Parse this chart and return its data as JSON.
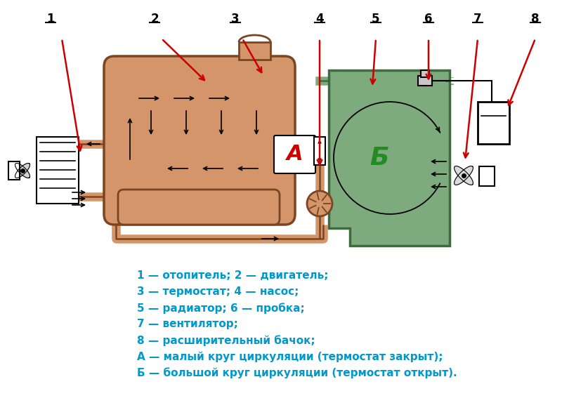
{
  "bg_color": "#ffffff",
  "engine_color": "#d4956a",
  "engine_stroke": "#7a4520",
  "radiator_color": "#7dab7d",
  "radiator_stroke": "#3d6b3d",
  "pipe_color": "#d4956a",
  "pipe_stroke": "#7a4520",
  "red_arrow_color": "#cc0000",
  "text_color": "#0099cc",
  "label_A_color": "#cc0000",
  "label_B_color": "#228B22",
  "legend_lines": [
    "1 — отопитель; 2 — двигатель;",
    "3 — термостат; 4 — насос;",
    "5 — радиатор; 6 — пробка;",
    "7 — вентилятор;",
    "8 — расширительный бачок;",
    "А — малый круг циркуляции (термостат закрыт);",
    "Б — большой круг циркуляции (термостат открыт)."
  ]
}
